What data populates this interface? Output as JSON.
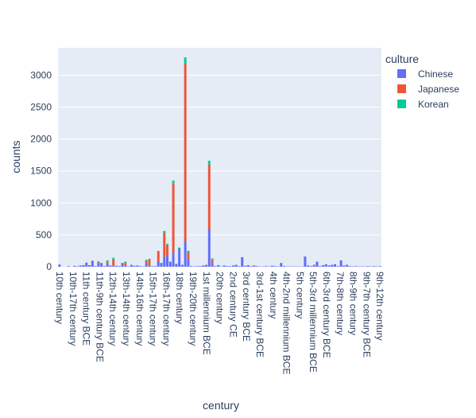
{
  "chart_data": {
    "type": "bar",
    "barmode": "stack",
    "xlabel": "century",
    "ylabel": "counts",
    "ylim": [
      0,
      3430
    ],
    "yticks": [
      0,
      500,
      1000,
      1500,
      2000,
      2500,
      3000
    ],
    "grid": true,
    "legend_title": "culture",
    "legend_position": "top-right",
    "tick_labels": [
      "10th century",
      "10th-17th century",
      "11th century BCE",
      "11th-9th century BCE",
      "12th-14th century",
      "13th-14th century",
      "14th-16th century",
      "15th-17th century",
      "16th-17th century",
      "18th century",
      "19th-20th century",
      "1st millennium BCE",
      "20th century",
      "2nd century CE",
      "3rd century BCE",
      "3rd-1st century BCE",
      "4th century",
      "4th-2nd millennium BCE",
      "5th century",
      "5th-3rd millennium BCE",
      "6th-3rd century BCE",
      "7th-8th century",
      "8th-9th century",
      "9th-7th century BCE",
      "9th-12th century"
    ],
    "bars": [
      [
        35,
        0,
        0
      ],
      [
        0,
        0,
        0
      ],
      [
        0,
        0,
        0
      ],
      [
        10,
        0,
        0
      ],
      [
        0,
        0,
        0
      ],
      [
        15,
        0,
        0
      ],
      [
        8,
        0,
        0
      ],
      [
        20,
        0,
        0
      ],
      [
        25,
        0,
        0
      ],
      [
        65,
        0,
        0
      ],
      [
        25,
        0,
        0
      ],
      [
        95,
        0,
        0
      ],
      [
        10,
        0,
        0
      ],
      [
        50,
        20,
        15
      ],
      [
        60,
        0,
        0
      ],
      [
        10,
        0,
        0
      ],
      [
        40,
        30,
        30
      ],
      [
        20,
        0,
        0
      ],
      [
        15,
        100,
        25
      ],
      [
        15,
        0,
        0
      ],
      [
        10,
        0,
        0
      ],
      [
        60,
        0,
        0
      ],
      [
        20,
        40,
        20
      ],
      [
        5,
        0,
        0
      ],
      [
        30,
        0,
        0
      ],
      [
        15,
        0,
        0
      ],
      [
        20,
        0,
        0
      ],
      [
        10,
        0,
        0
      ],
      [
        5,
        0,
        0
      ],
      [
        50,
        40,
        20
      ],
      [
        20,
        90,
        15
      ],
      [
        10,
        0,
        0
      ],
      [
        10,
        0,
        0
      ],
      [
        80,
        160,
        10
      ],
      [
        60,
        0,
        0
      ],
      [
        150,
        380,
        30
      ],
      [
        180,
        160,
        20
      ],
      [
        80,
        0,
        0
      ],
      [
        220,
        1080,
        50
      ],
      [
        45,
        0,
        0
      ],
      [
        280,
        0,
        20
      ],
      [
        30,
        0,
        0
      ],
      [
        400,
        2780,
        100
      ],
      [
        120,
        100,
        30
      ],
      [
        10,
        0,
        0
      ],
      [
        5,
        0,
        0
      ],
      [
        10,
        0,
        0
      ],
      [
        10,
        0,
        0
      ],
      [
        20,
        0,
        0
      ],
      [
        30,
        0,
        0
      ],
      [
        580,
        1020,
        60
      ],
      [
        60,
        50,
        20
      ],
      [
        10,
        0,
        0
      ],
      [
        25,
        0,
        0
      ],
      [
        5,
        0,
        0
      ],
      [
        20,
        0,
        0
      ],
      [
        10,
        0,
        0
      ],
      [
        10,
        0,
        0
      ],
      [
        20,
        0,
        0
      ],
      [
        30,
        0,
        0
      ],
      [
        10,
        0,
        0
      ],
      [
        150,
        0,
        0
      ],
      [
        15,
        0,
        0
      ],
      [
        25,
        0,
        0
      ],
      [
        10,
        0,
        0
      ],
      [
        20,
        0,
        0
      ],
      [
        10,
        0,
        0
      ],
      [
        5,
        0,
        0
      ],
      [
        5,
        0,
        0
      ],
      [
        10,
        0,
        0
      ],
      [
        5,
        0,
        0
      ],
      [
        15,
        0,
        0
      ],
      [
        10,
        0,
        0
      ],
      [
        5,
        0,
        0
      ],
      [
        60,
        0,
        0
      ],
      [
        10,
        0,
        0
      ],
      [
        5,
        0,
        0
      ],
      [
        8,
        0,
        0
      ],
      [
        5,
        0,
        0
      ],
      [
        5,
        0,
        0
      ],
      [
        5,
        0,
        0
      ],
      [
        5,
        0,
        0
      ],
      [
        160,
        0,
        0
      ],
      [
        20,
        0,
        0
      ],
      [
        10,
        0,
        0
      ],
      [
        30,
        0,
        0
      ],
      [
        80,
        0,
        0
      ],
      [
        10,
        0,
        0
      ],
      [
        25,
        0,
        0
      ],
      [
        40,
        0,
        0
      ],
      [
        20,
        0,
        0
      ],
      [
        30,
        0,
        0
      ],
      [
        40,
        0,
        0
      ],
      [
        10,
        0,
        0
      ],
      [
        100,
        0,
        0
      ],
      [
        20,
        0,
        0
      ],
      [
        30,
        0,
        0
      ],
      [
        10,
        0,
        0
      ],
      [
        5,
        0,
        0
      ],
      [
        10,
        0,
        0
      ],
      [
        5,
        0,
        0
      ],
      [
        5,
        0,
        0
      ],
      [
        5,
        0,
        0
      ],
      [
        10,
        0,
        0
      ],
      [
        5,
        0,
        0
      ],
      [
        10,
        0,
        0
      ],
      [
        5,
        0,
        0
      ],
      [
        10,
        0,
        0
      ]
    ],
    "series": [
      {
        "name": "Chinese",
        "color": "#636efa"
      },
      {
        "name": "Japanese",
        "color": "#EF553B"
      },
      {
        "name": "Korean",
        "color": "#00cc96"
      }
    ]
  }
}
